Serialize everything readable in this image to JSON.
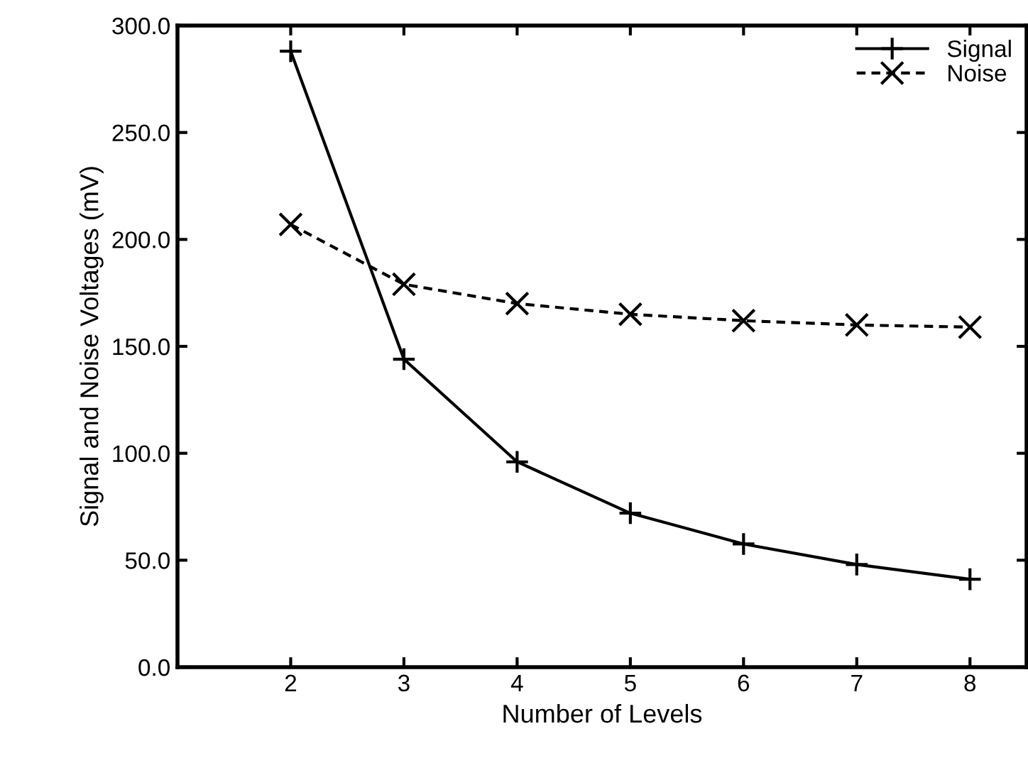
{
  "chart_data": {
    "type": "line",
    "xlabel": "Number of Levels",
    "ylabel": "Signal and Noise Voltages (mV)",
    "x": [
      2,
      3,
      4,
      5,
      6,
      7,
      8
    ],
    "series": [
      {
        "name": "Signal",
        "color": "#000000",
        "marker": "plus",
        "line_style": "solid",
        "values": [
          288,
          144,
          96,
          72,
          57.6,
          48,
          41.1
        ]
      },
      {
        "name": "Noise",
        "color": "#000000",
        "marker": "cross",
        "line_style": "dashed",
        "values": [
          207,
          179,
          170,
          165,
          162,
          160,
          159
        ]
      }
    ],
    "xlim": [
      1,
      8.5
    ],
    "xticks": [
      2,
      3,
      4,
      5,
      6,
      7,
      8
    ],
    "ylim": [
      0,
      300
    ],
    "yticks": [
      {
        "value": 0,
        "label": "0.0"
      },
      {
        "value": 50,
        "label": "50.0"
      },
      {
        "value": 100,
        "label": "100.0"
      },
      {
        "value": 150,
        "label": "150.0"
      },
      {
        "value": 200,
        "label": "200.0"
      },
      {
        "value": 250,
        "label": "250.0"
      },
      {
        "value": 300,
        "label": "300.0"
      }
    ],
    "grid": false,
    "legend": "top right"
  }
}
